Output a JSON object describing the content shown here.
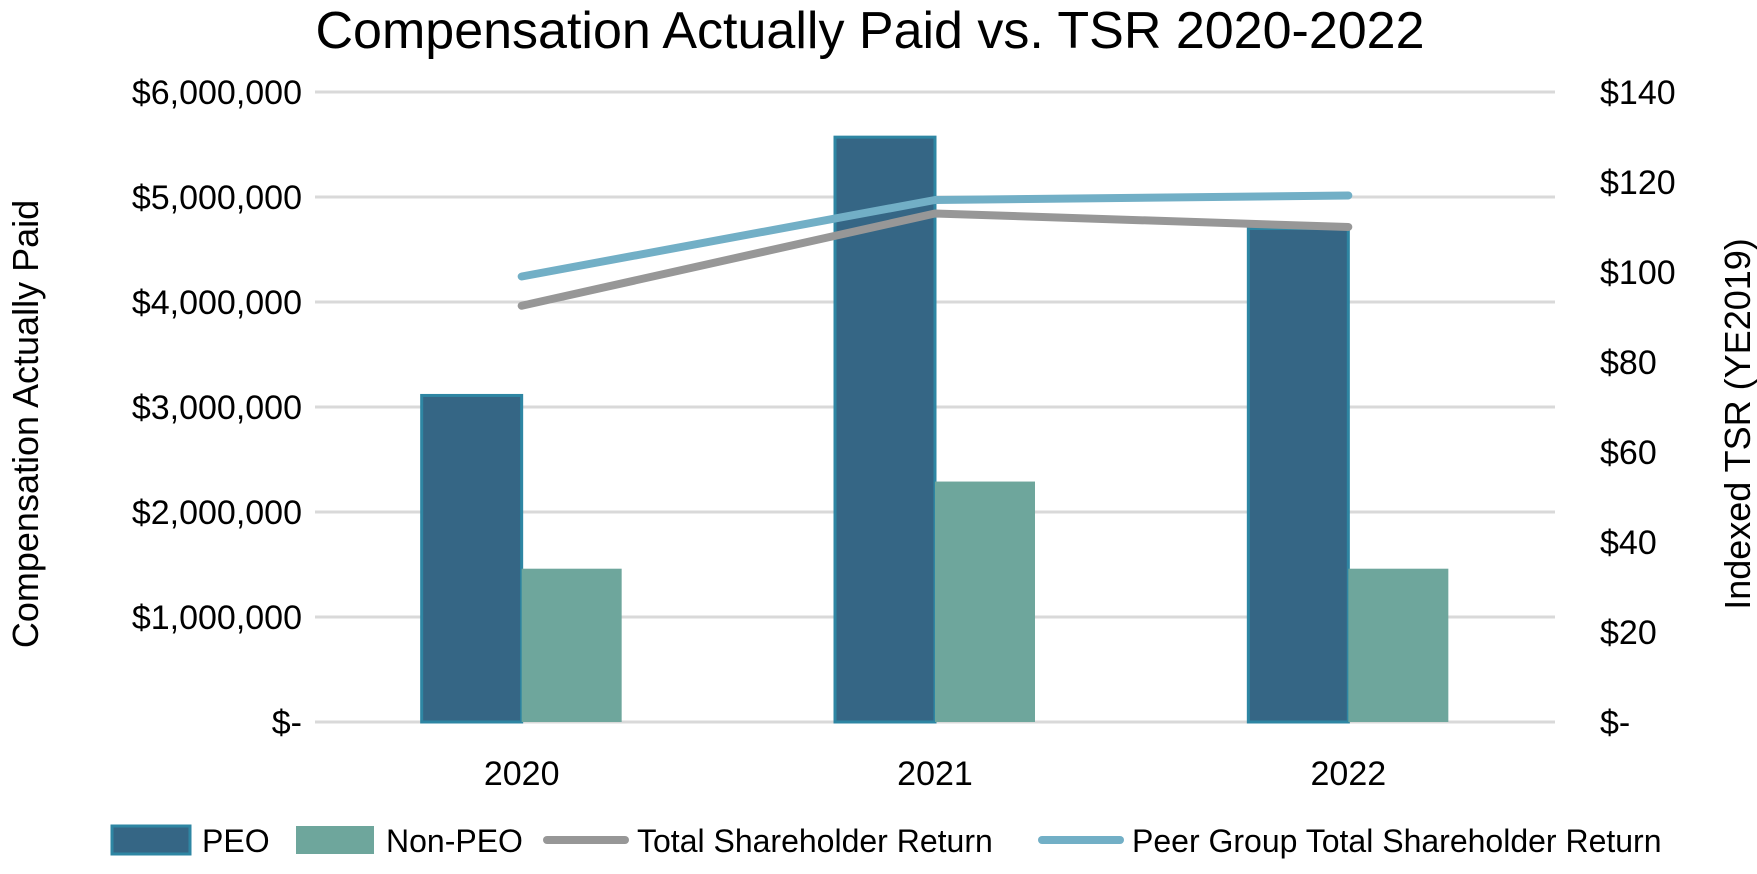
{
  "chart_data": {
    "type": "bar",
    "title": "Compensation Actually Paid vs. TSR 2020-2022",
    "xlabel": "",
    "ylabel": "Compensation Actually Paid",
    "y2label": "Indexed TSR (YE2019)",
    "categories": [
      "2020",
      "2021",
      "2022"
    ],
    "ylim": [
      0,
      6000000
    ],
    "y2lim": [
      0,
      140
    ],
    "yticks": [
      "$-",
      "$1,000,000",
      "$2,000,000",
      "$3,000,000",
      "$4,000,000",
      "$5,000,000",
      "$6,000,000"
    ],
    "y2ticks": [
      "$-",
      "$20",
      "$40",
      "$60",
      "$80",
      "$100",
      "$120",
      "$140"
    ],
    "grid": true,
    "legend_position": "bottom",
    "series": [
      {
        "name": "PEO",
        "type": "bar",
        "axis": "left",
        "color": "#356685",
        "values": [
          3110000,
          5570000,
          4700000
        ]
      },
      {
        "name": "Non-PEO",
        "type": "bar",
        "axis": "left",
        "color": "#6ea69c",
        "values": [
          1460000,
          2290000,
          1460000
        ]
      },
      {
        "name": "Total Shareholder Return",
        "type": "line",
        "axis": "right",
        "color": "#979797",
        "values": [
          92.5,
          113,
          110
        ]
      },
      {
        "name": "Peer Group Total Shareholder Return",
        "type": "line",
        "axis": "right",
        "color": "#72afc6",
        "values": [
          99,
          116,
          117
        ]
      }
    ]
  }
}
